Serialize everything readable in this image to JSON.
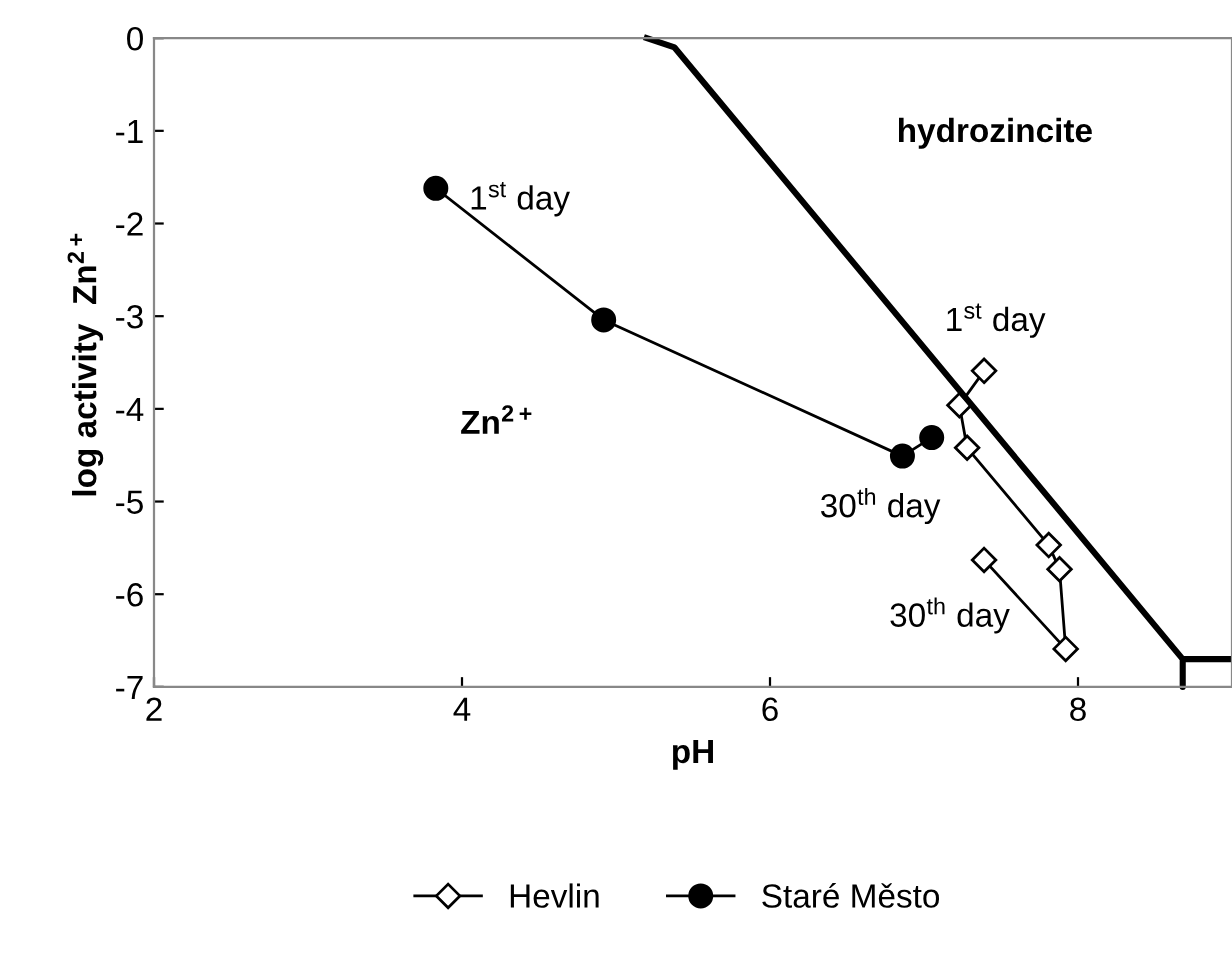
{
  "chart_data": {
    "type": "line",
    "xlabel": "pH",
    "ylabel": "log activity  Zn$^{2+}$",
    "xlim": [
      2,
      9
    ],
    "xticks": [
      2,
      4,
      6,
      8
    ],
    "ylim": [
      -7,
      0
    ],
    "yticks": [
      -7,
      -6,
      -5,
      -4,
      -3,
      -2,
      -1,
      0
    ],
    "grid": false,
    "legend": "bottom",
    "series": [
      {
        "name": "Hevlin",
        "color": "#000000",
        "marker": "diamond",
        "x": [
          7.39,
          7.23,
          7.28,
          7.81,
          7.88,
          7.92,
          7.39
        ],
        "values": [
          -3.59,
          -3.96,
          -4.42,
          -5.47,
          -5.73,
          -6.59,
          -5.63
        ]
      },
      {
        "name": "Staré Město",
        "color": "#000000",
        "marker": "circle",
        "x": [
          3.83,
          4.92,
          6.86,
          7.05
        ],
        "values": [
          -1.62,
          -3.04,
          -4.51,
          -4.31
        ]
      },
      {
        "color": "#000000",
        "marker": "none",
        "x": [
          5.2,
          5.38,
          8.68,
          8.68,
          8.68,
          9.0
        ],
        "values": [
          0,
          -0.1,
          -6.7,
          -7,
          -6.7,
          -6.7
        ]
      }
    ],
    "annotations": [
      "hydrozincite",
      "Zn$^{2+}$",
      {
        "text": "1$^{st}$ day",
        "x": 3.83,
        "y": -1.62
      },
      {
        "text": "1$^{st}$ day",
        "x": 7.39,
        "y": -3.59
      },
      {
        "text": "30$^{th}$ day",
        "x": 6.86,
        "y": -4.51
      },
      {
        "text": "30$^{th}$ day",
        "x": 7.92,
        "y": -6.59
      }
    ]
  }
}
